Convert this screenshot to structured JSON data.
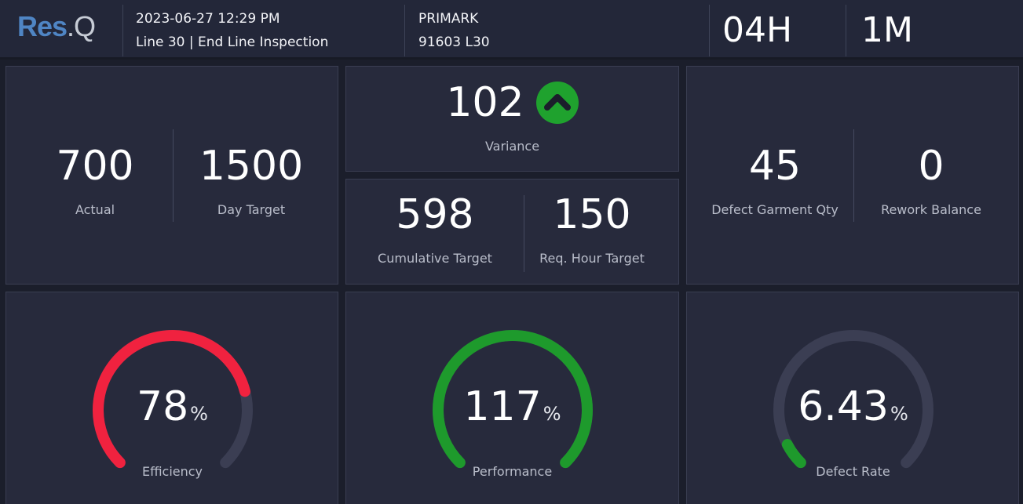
{
  "header": {
    "logo": {
      "res": "Res",
      "dot_q": ".Q"
    },
    "datetime": "2023-06-27 12:29 PM",
    "line_info": "Line 30 | End Line Inspection",
    "customer": "PRIMARK",
    "style_code": "91603 L30",
    "hours": "04H",
    "minutes": "1M"
  },
  "production": {
    "actual": {
      "value": "700",
      "label": "Actual"
    },
    "day_target": {
      "value": "1500",
      "label": "Day Target"
    }
  },
  "variance": {
    "value": "102",
    "label": "Variance",
    "trend_icon": "chevron-up-icon",
    "trend_color": "#1fa22e"
  },
  "targets": {
    "cumulative": {
      "value": "598",
      "label": "Cumulative Target"
    },
    "req_hour": {
      "value": "150",
      "label": "Req. Hour Target"
    }
  },
  "defects": {
    "garment_qty": {
      "value": "45",
      "label": "Defect Garment Qty"
    },
    "rework_balance": {
      "value": "0",
      "label": "Rework Balance"
    }
  },
  "gauges": {
    "efficiency": {
      "value": "78",
      "unit": "%",
      "label": "Efficiency",
      "fill_fraction": 0.78,
      "color": "#f0223f"
    },
    "performance": {
      "value": "117",
      "unit": "%",
      "label": "Performance",
      "fill_fraction": 1.0,
      "color": "#1e9a2c"
    },
    "defect_rate": {
      "value": "6.43",
      "unit": "%",
      "label": "Defect Rate",
      "fill_fraction": 0.0643,
      "color": "#1e9a2c"
    }
  },
  "colors": {
    "background": "#1b1e2b",
    "panel": "#272a3c",
    "gauge_track": "#3b3e53",
    "logo_blue": "#4f85c4"
  }
}
